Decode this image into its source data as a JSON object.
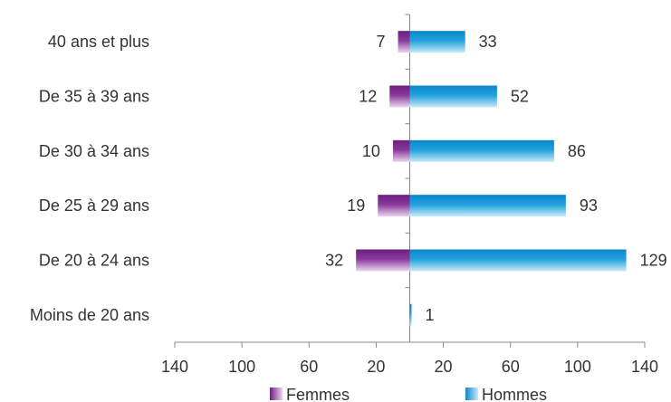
{
  "chart_data": {
    "type": "bar",
    "orientation": "horizontal-butterfly",
    "categories": [
      "40 ans et plus",
      "De 35 à 39 ans",
      "De 30 à 34 ans",
      "De 25 à 29 ans",
      "De 20 à 24 ans",
      "Moins de 20 ans"
    ],
    "series": [
      {
        "name": "Femmes",
        "values": [
          7,
          12,
          10,
          19,
          32,
          0
        ],
        "labels": [
          "7",
          "12",
          "10",
          "19",
          "32",
          ""
        ]
      },
      {
        "name": "Hommes",
        "values": [
          33,
          52,
          86,
          93,
          129,
          1
        ],
        "labels": [
          "33",
          "52",
          "86",
          "93",
          "129",
          "1"
        ]
      }
    ],
    "xlim": [
      -140,
      140
    ],
    "x_ticks": [
      -140,
      -100,
      -60,
      -20,
      20,
      60,
      100,
      140
    ],
    "x_tick_labels": [
      "140",
      "100",
      "60",
      "20",
      "20",
      "60",
      "100",
      "140"
    ],
    "legend_position": "bottom",
    "grid": false,
    "colors": {
      "femmes": "#7a2a8c",
      "hommes": "#1a9ad6"
    }
  }
}
